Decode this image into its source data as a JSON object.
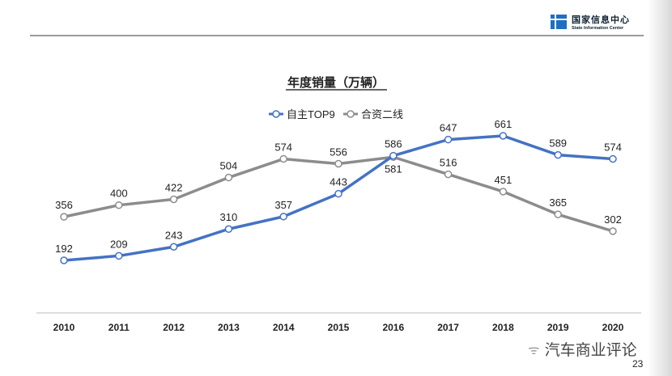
{
  "header": {
    "logo_cn": "国家信息中心",
    "logo_en": "State Information Center"
  },
  "footer": {
    "watermark": "汽车商业评论",
    "page_number": "23"
  },
  "chart_data": {
    "type": "line",
    "title": "年度销量（万辆）",
    "legend_position": "top",
    "x": [
      "2010",
      "2011",
      "2012",
      "2013",
      "2014",
      "2015",
      "2016",
      "2017",
      "2018",
      "2019",
      "2020"
    ],
    "series": [
      {
        "name": "自主TOP9",
        "color": "#4472c4",
        "values": [
          192,
          209,
          243,
          310,
          357,
          443,
          586,
          647,
          661,
          589,
          574
        ]
      },
      {
        "name": "合资二线",
        "color": "#8c8c8c",
        "values": [
          356,
          400,
          422,
          504,
          574,
          556,
          581,
          516,
          451,
          365,
          302
        ]
      }
    ],
    "grid": false
  }
}
